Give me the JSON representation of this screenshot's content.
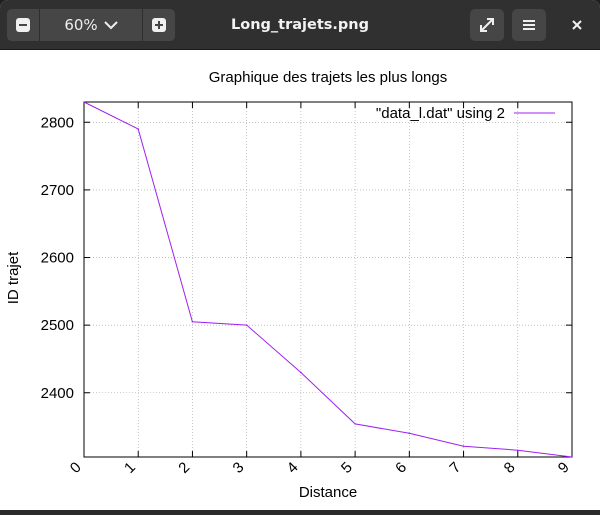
{
  "headerbar": {
    "zoom_label": "60%",
    "title": "Long_trajets.png"
  },
  "icons": {
    "zoom_out": "minus-icon",
    "zoom_in": "plus-icon",
    "dropdown": "chevron-down-icon",
    "fullscreen": "expand-icon",
    "menu": "hamburger-menu-icon",
    "close": "close-icon"
  },
  "colors": {
    "headerbar": "#303030",
    "button": "#464646",
    "series": "#a020f0",
    "grid": "#a0a0a0"
  },
  "chart_data": {
    "type": "line",
    "title": "Graphique des trajets les plus longs",
    "xlabel": "Distance",
    "ylabel": "ID trajet",
    "xlim": [
      0,
      9
    ],
    "ylim": [
      2305,
      2830
    ],
    "x_ticks": [
      "0",
      "1",
      "2",
      "3",
      "4",
      "5",
      "6",
      "7",
      "8",
      "9"
    ],
    "y_ticks": [
      2400,
      2500,
      2600,
      2700,
      2800
    ],
    "grid": true,
    "legend_position": "top-right",
    "series": [
      {
        "name": "\"data_l.dat\" using 2",
        "x": [
          0,
          1,
          2,
          3,
          4,
          5,
          6,
          7,
          8,
          9
        ],
        "values": [
          2830,
          2790,
          2505,
          2500,
          2430,
          2354,
          2340,
          2321,
          2315,
          2305
        ]
      }
    ]
  }
}
